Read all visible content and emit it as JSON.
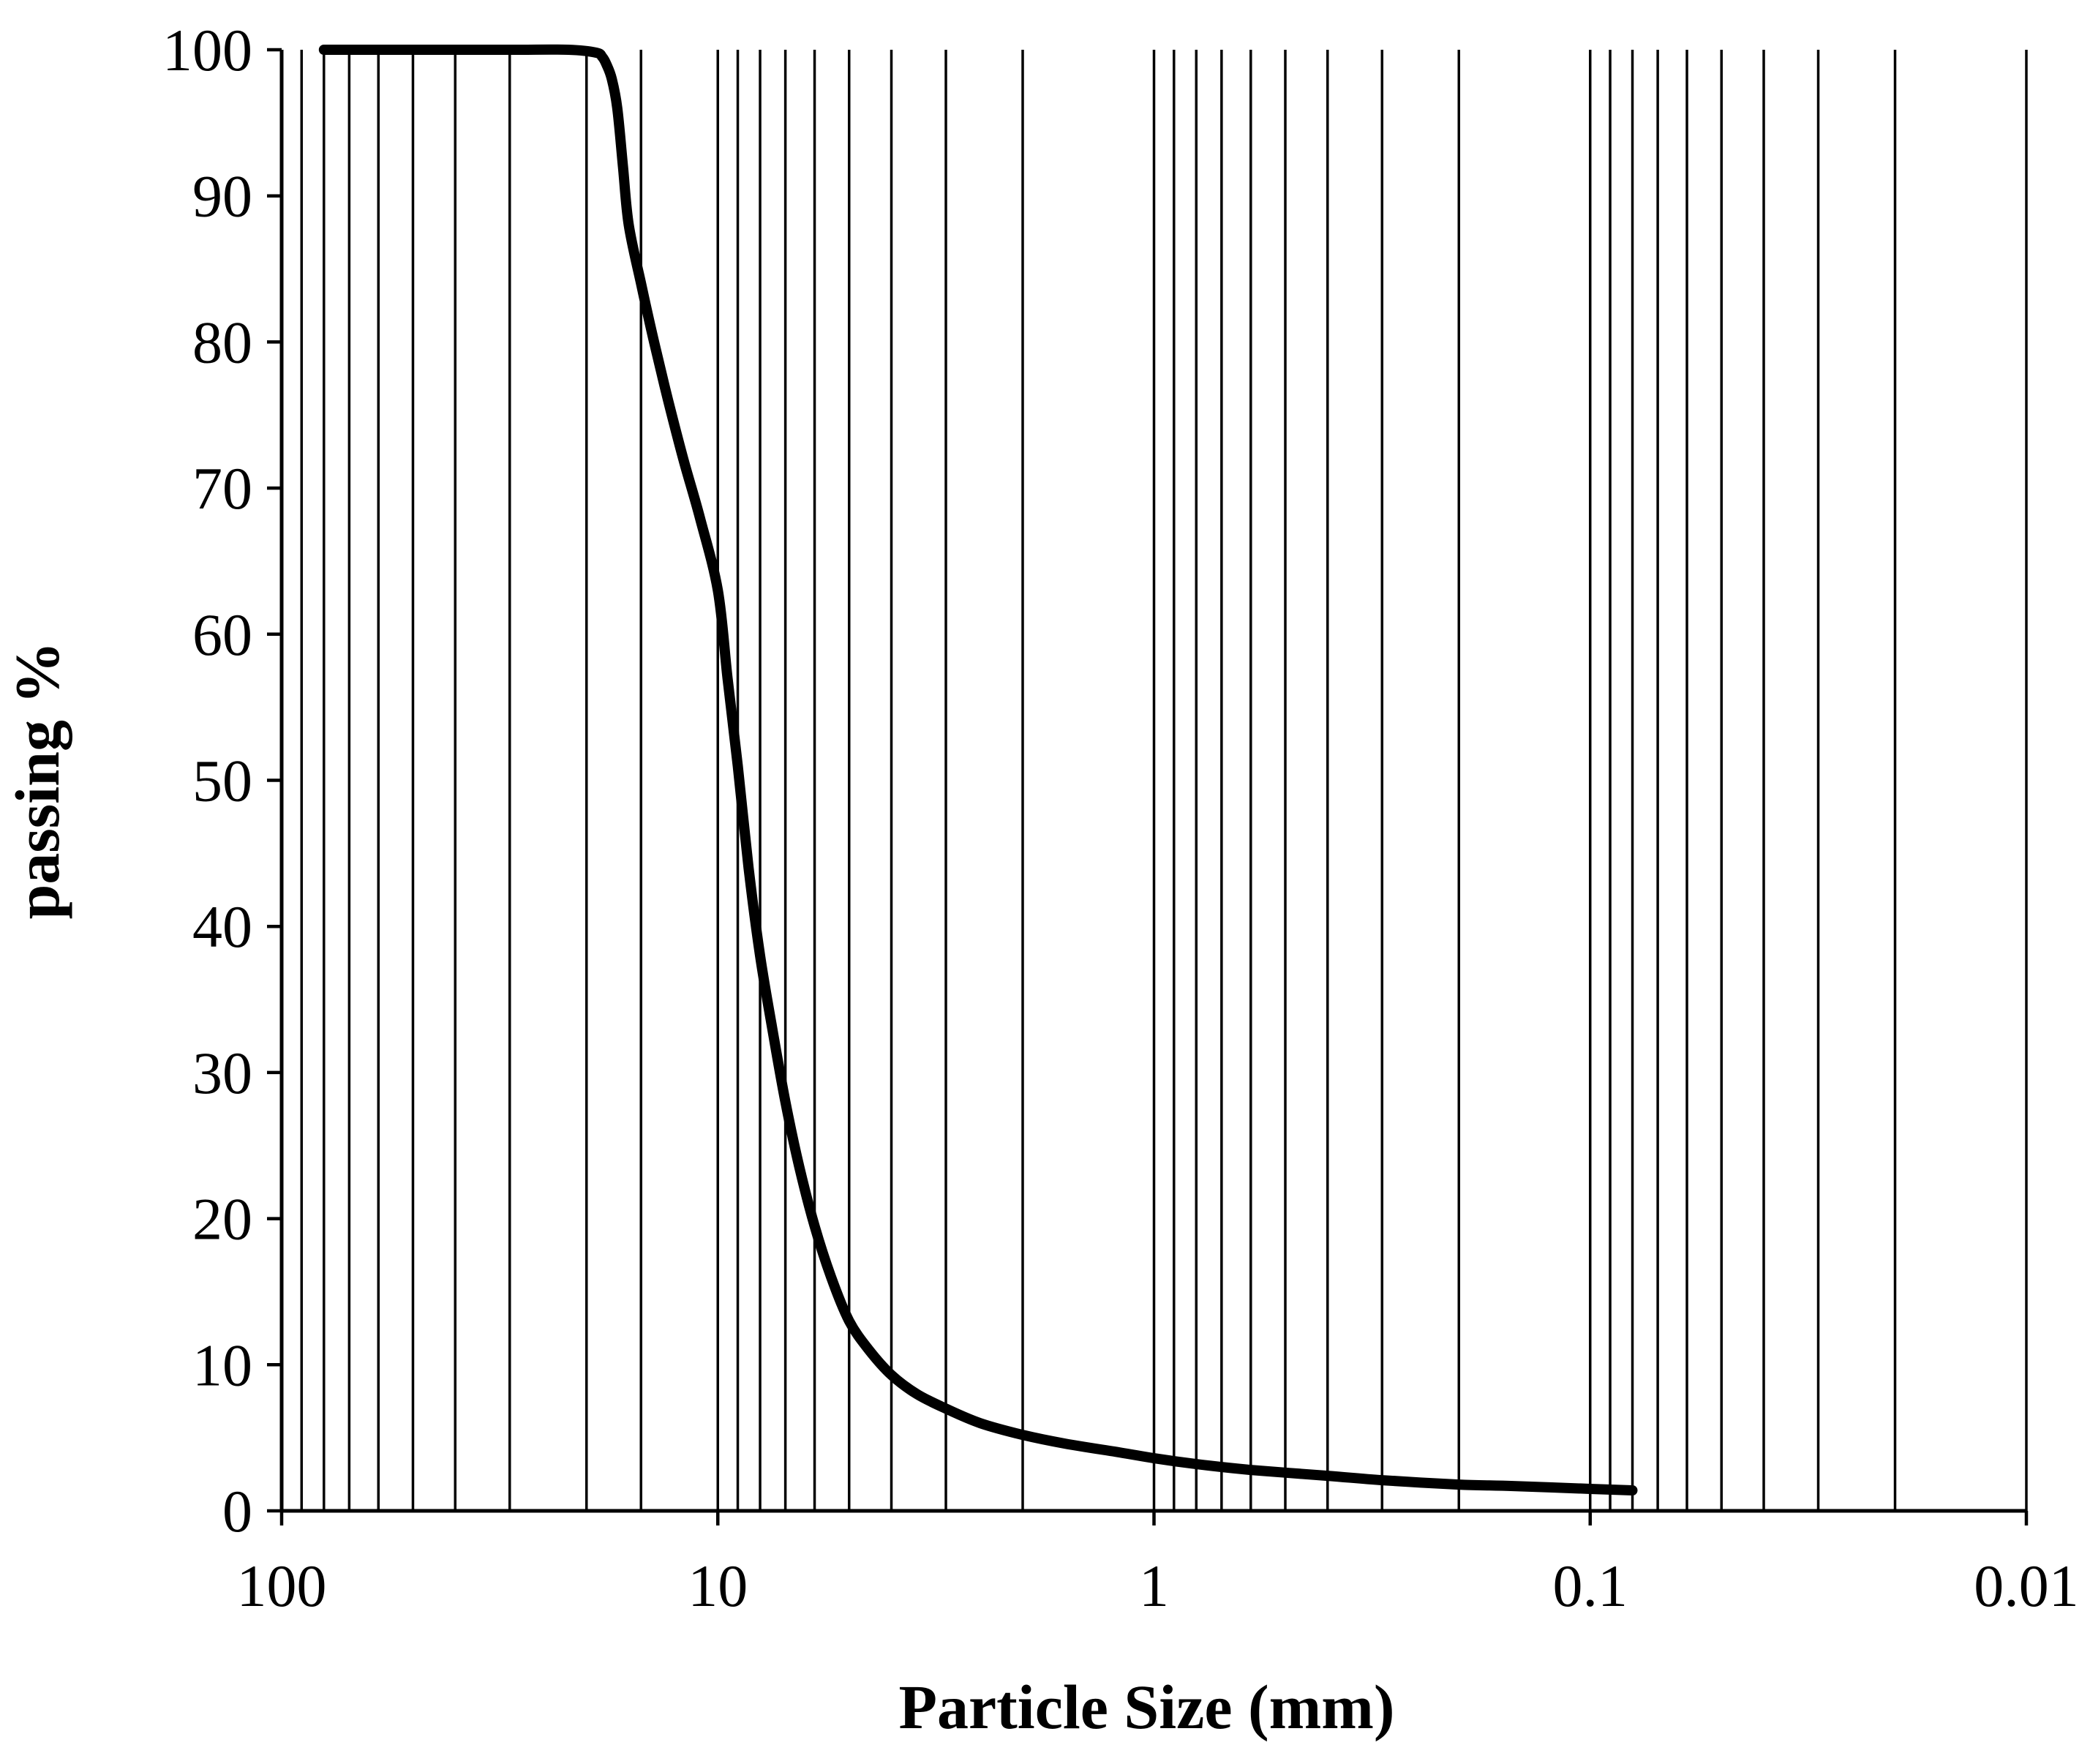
{
  "chart_data": {
    "type": "line",
    "title": "",
    "xlabel": "Particle Size (mm)",
    "ylabel": "passing %",
    "x_scale": "log",
    "x_reversed": true,
    "xlim": [
      100,
      0.01
    ],
    "ylim": [
      0,
      100
    ],
    "x_ticks": [
      100,
      10,
      1,
      0.1,
      0.01
    ],
    "x_tick_labels": [
      "100",
      "10",
      "1",
      "0.1",
      "0.01"
    ],
    "y_ticks": [
      0,
      10,
      20,
      30,
      40,
      50,
      60,
      70,
      80,
      90,
      100
    ],
    "y_tick_labels": [
      "0",
      "10",
      "20",
      "30",
      "40",
      "50",
      "60",
      "70",
      "80",
      "90",
      "100"
    ],
    "vertical_gridlines": [
      90,
      80,
      70,
      60,
      50,
      40,
      30,
      20,
      15,
      10,
      9,
      8,
      7,
      6,
      5,
      4,
      3,
      2,
      1,
      0.9,
      0.8,
      0.7,
      0.6,
      0.5,
      0.4,
      0.3,
      0.2,
      0.1,
      0.09,
      0.08,
      0.07,
      0.06,
      0.05,
      0.04,
      0.03,
      0.02,
      0.01
    ],
    "horizontal_grid": false,
    "legend": "none",
    "colors": {
      "line": "#000000",
      "grid": "#000000",
      "background": "#ffffff"
    },
    "series": [
      {
        "x": [
          80,
          50,
          30,
          22,
          19,
          18.4,
          18,
          17.5,
          17,
          16.5,
          16,
          15,
          14,
          13,
          12,
          11,
          10,
          9.5,
          9,
          8.5,
          8,
          7.5,
          7,
          6.5,
          6,
          5.5,
          5,
          4.5,
          4,
          3.5,
          3,
          2.5,
          2,
          1.6,
          1.2,
          1,
          0.8,
          0.6,
          0.4,
          0.3,
          0.2,
          0.15,
          0.1,
          0.08
        ],
        "y": [
          100,
          100,
          100,
          100,
          99.8,
          99.5,
          99,
          98,
          96,
          92,
          88,
          84,
          80,
          76,
          72,
          68,
          63,
          57,
          51,
          44,
          38,
          33,
          28,
          23.5,
          19.5,
          16,
          13,
          11,
          9.3,
          8,
          7,
          6,
          5.2,
          4.6,
          4.0,
          3.6,
          3.2,
          2.8,
          2.4,
          2.1,
          1.8,
          1.7,
          1.5,
          1.4
        ]
      }
    ]
  }
}
